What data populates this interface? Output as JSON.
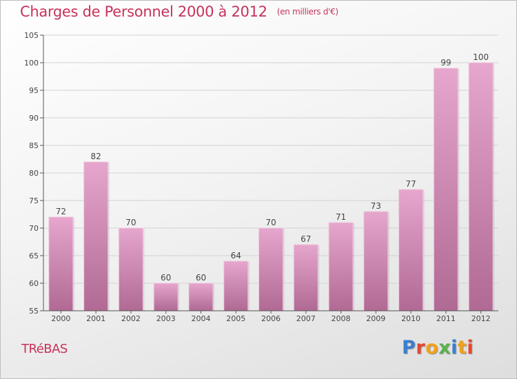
{
  "header": {
    "title": "Charges de Personnel 2000 à 2012",
    "subtitle": "(en milliers d'€)"
  },
  "footer": {
    "commune": "TRéBAS",
    "logo_text": "Proxiti",
    "logo_colors": [
      "#3a7fd0",
      "#e8452c",
      "#f2a11a",
      "#58b24a",
      "#3a7fd0",
      "#f2a11a",
      "#e8452c"
    ]
  },
  "colors": {
    "bar_light": "#e6a6cd",
    "bar_dark": "#b06a94",
    "title": "#c8325a",
    "axis": "#555555",
    "grid": "#d2d2d2"
  },
  "chart_data": {
    "type": "bar",
    "categories": [
      "2000",
      "2001",
      "2002",
      "2003",
      "2004",
      "2005",
      "2006",
      "2007",
      "2008",
      "2009",
      "2010",
      "2011",
      "2012"
    ],
    "values": [
      72,
      82,
      70,
      60,
      60,
      64,
      70,
      67,
      71,
      73,
      77,
      99,
      100
    ],
    "data_labels": [
      "72",
      "82",
      "70",
      "60",
      "60",
      "64",
      "70",
      "67",
      "71",
      "73",
      "77",
      "99",
      "100"
    ],
    "y_ticks": [
      55,
      60,
      65,
      70,
      75,
      80,
      85,
      90,
      95,
      100,
      105
    ],
    "y_tick_labels": [
      "55",
      "60",
      "65",
      "70",
      "75",
      "80",
      "85",
      "90",
      "95",
      "100",
      "105"
    ],
    "ylim": [
      55,
      105
    ],
    "grid": true,
    "title": "Charges de Personnel 2000 à 2012",
    "xlabel": "",
    "ylabel": ""
  }
}
